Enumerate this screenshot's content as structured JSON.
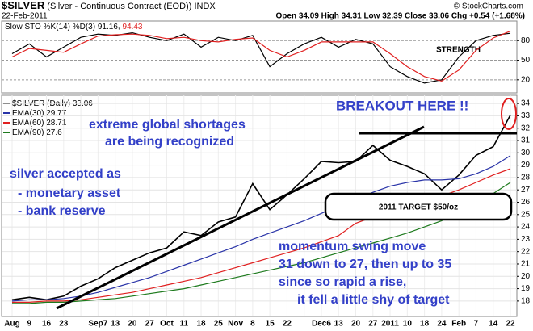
{
  "header": {
    "symbol": "$SILVER",
    "description": "(Silver - Continuous Contract (EOD)) INDX",
    "date": "22-Feb-2011",
    "quote": "Open 34.09 High 34.31 Low 32.39 Close 33.06 Chg +0.54 (+1.68%)",
    "credit": "© StockCharts.com"
  },
  "chart_data": [
    {
      "type": "line",
      "title": "Slow STO %K(14) %D(3)",
      "annotation": "STRENGTH",
      "ylim": [
        0,
        110
      ],
      "yticks": [
        20,
        50,
        80
      ],
      "grid": true,
      "series": [
        {
          "name": "%K",
          "color": "#000000",
          "values": [
            60,
            75,
            55,
            70,
            85,
            90,
            88,
            92,
            85,
            80,
            90,
            70,
            85,
            80,
            88,
            40,
            60,
            75,
            85,
            70,
            82,
            75,
            40,
            25,
            15,
            20,
            55,
            80,
            88,
            91.16
          ]
        },
        {
          "name": "%D",
          "color": "#e02020",
          "values": [
            55,
            68,
            65,
            62,
            75,
            87,
            89,
            90,
            88,
            83,
            85,
            80,
            78,
            82,
            84,
            65,
            55,
            65,
            78,
            78,
            78,
            78,
            60,
            40,
            25,
            18,
            35,
            65,
            84,
            94.43
          ]
        }
      ]
    },
    {
      "type": "line",
      "categories": [
        "Aug",
        "9",
        "16",
        "23",
        null,
        "Sep7",
        "13",
        "20",
        "27",
        "Oct",
        "11",
        "18",
        "25",
        "Nov",
        "8",
        "15",
        "22",
        null,
        "Dec6",
        "13",
        "20",
        "27",
        "2011",
        "10",
        "18",
        "24",
        "Feb",
        "7",
        "14",
        "22"
      ],
      "ylim": [
        16.75,
        34.66
      ],
      "yticks": [
        18,
        19,
        20,
        21,
        22,
        23,
        24,
        25,
        26,
        27,
        28,
        29,
        30,
        31,
        32,
        33,
        34
      ],
      "grid": true,
      "series": [
        {
          "name": "$SILVER (Daily)",
          "color": "#000000",
          "values": [
            18.1,
            18.3,
            18.1,
            18.4,
            19.2,
            19.8,
            20.7,
            21.3,
            21.9,
            22.3,
            23.6,
            23.3,
            24.4,
            24.8,
            27.5,
            25.4,
            26.6,
            27.9,
            29.3,
            29.2,
            29.3,
            30.6,
            29.4,
            28.9,
            28.3,
            27.0,
            28.2,
            29.8,
            30.5,
            33.06
          ]
        },
        {
          "name": "EMA(30)",
          "color": "#2a34a8",
          "values": [
            18.0,
            18.1,
            18.1,
            18.2,
            18.4,
            18.7,
            19.1,
            19.5,
            19.9,
            20.4,
            20.9,
            21.4,
            21.9,
            22.4,
            23.0,
            23.5,
            24.0,
            24.5,
            25.1,
            25.7,
            26.2,
            26.8,
            27.3,
            27.6,
            27.8,
            27.8,
            27.9,
            28.3,
            28.9,
            29.77
          ]
        },
        {
          "name": "EMA(60)",
          "color": "#e02020",
          "values": [
            17.9,
            17.9,
            18.0,
            18.0,
            18.1,
            18.3,
            18.5,
            18.7,
            19.0,
            19.3,
            19.6,
            19.9,
            20.3,
            20.7,
            21.1,
            21.5,
            21.9,
            22.3,
            22.8,
            23.3,
            24.3,
            24.8,
            25.2,
            25.6,
            26.0,
            26.5,
            27.0,
            27.6,
            28.2,
            28.71
          ]
        },
        {
          "name": "EMA(90)",
          "color": "#1d7a1d",
          "values": [
            17.8,
            17.8,
            17.9,
            17.9,
            18.0,
            18.1,
            18.2,
            18.4,
            18.6,
            18.8,
            19.0,
            19.3,
            19.6,
            19.9,
            20.2,
            20.5,
            20.8,
            21.1,
            21.5,
            21.9,
            22.3,
            22.7,
            23.1,
            23.5,
            24.0,
            24.5,
            25.2,
            25.9,
            26.7,
            27.6
          ]
        }
      ],
      "annotations": [
        "BREAKOUT HERE !!",
        "extreme global shortages",
        "are being recognized",
        "silver accepted as",
        "- monetary asset",
        "- bank reserve",
        "2011 TARGET $50/oz",
        "momentum swing move",
        "31 down to 27, then up to 35",
        "since so rapid a rise,",
        "it fell a little shy of target"
      ]
    }
  ]
}
